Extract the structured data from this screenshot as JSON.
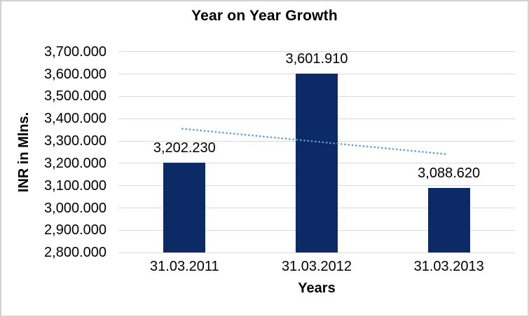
{
  "chart_data": {
    "type": "bar",
    "title": "Year on Year Growth",
    "xlabel": "Years",
    "ylabel": "INR in Mlns.",
    "categories": [
      "31.03.2011",
      "31.03.2012",
      "31.03.2013"
    ],
    "series": [
      {
        "name": "INR in Mlns.",
        "values": [
          3202.23,
          3601.91,
          3088.62
        ],
        "value_labels": [
          "3,202.230",
          "3,601.910",
          "3,088.620"
        ]
      }
    ],
    "ylim": [
      2800,
      3700
    ],
    "ytick_step": 100,
    "yticks": [
      {
        "value": 2800,
        "label": "2,800.000"
      },
      {
        "value": 2900,
        "label": "2,900.000"
      },
      {
        "value": 3000,
        "label": "3,000.000"
      },
      {
        "value": 3100,
        "label": "3,100.000"
      },
      {
        "value": 3200,
        "label": "3,200.000"
      },
      {
        "value": 3300,
        "label": "3,300.000"
      },
      {
        "value": 3400,
        "label": "3,400.000"
      },
      {
        "value": 3500,
        "label": "3,500.000"
      },
      {
        "value": 3600,
        "label": "3,600.000"
      },
      {
        "value": 3700,
        "label": "3,700.000"
      }
    ],
    "grid": "horizontal",
    "legend": "none",
    "trendline": {
      "type": "linear",
      "style": "dotted",
      "start_value": 3355,
      "end_value": 3241
    }
  },
  "colors": {
    "bar": "#0b2a66",
    "trendline": "#5b9bd5",
    "gridline": "#d9d9d9",
    "text": "#000000",
    "chart_border": "#d2d2d2",
    "background": "#ffffff"
  }
}
